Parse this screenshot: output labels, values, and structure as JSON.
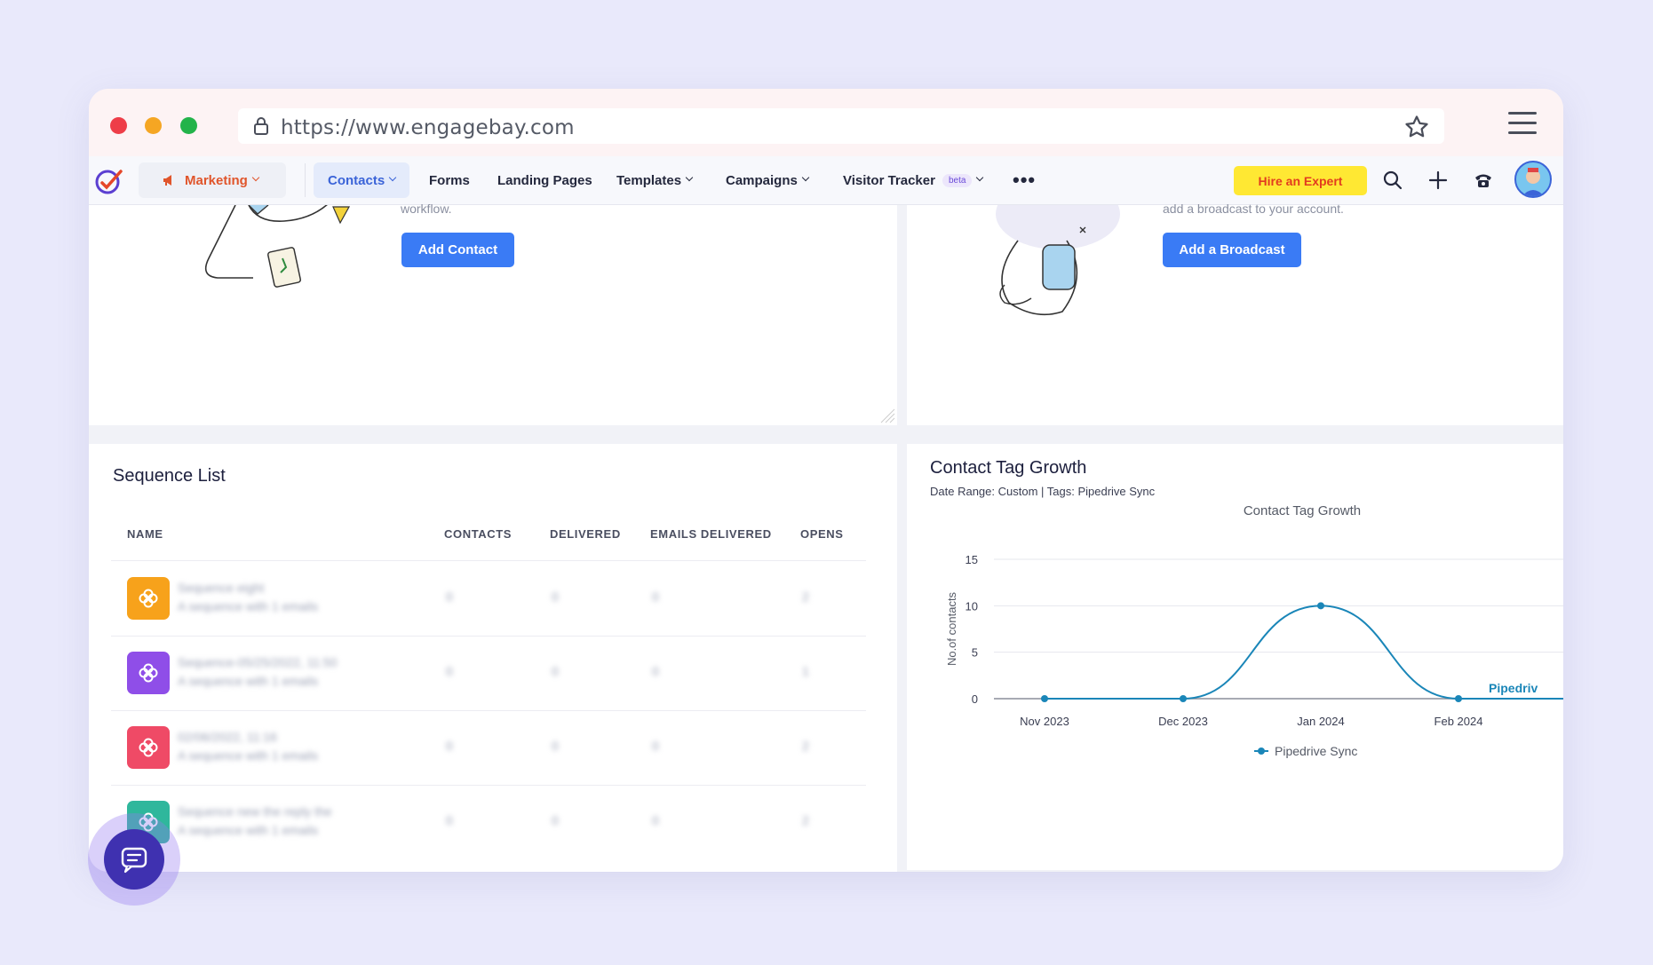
{
  "browser": {
    "url": "https://www.engagebay.com"
  },
  "nav": {
    "module_label": "Marketing",
    "items": [
      "Contacts",
      "Forms",
      "Landing Pages",
      "Templates",
      "Campaigns",
      "Visitor Tracker"
    ],
    "beta_badge": "beta",
    "more_label": "•••",
    "hire_label": "Hire an Expert"
  },
  "top_left_card": {
    "text": "workflow.",
    "button_label": "Add Contact"
  },
  "top_right_card": {
    "text": "add a broadcast to your account.",
    "button_label": "Add a Broadcast"
  },
  "sequence_list": {
    "title": "Sequence List",
    "columns": [
      "NAME",
      "CONTACTS",
      "DELIVERED",
      "EMAILS DELIVERED",
      "OPENS"
    ],
    "rows": [
      {
        "name": "Sequence eight",
        "subtitle": "A sequence with 1 emails",
        "contacts": "0",
        "delivered": "0",
        "emails_delivered": "0",
        "opens": "2",
        "color": "#f7a21b"
      },
      {
        "name": "Sequence-05/25/2022, 11:50",
        "subtitle": "A sequence with 1 emails",
        "contacts": "0",
        "delivered": "0",
        "emails_delivered": "0",
        "opens": "1",
        "color": "#8f4ee8"
      },
      {
        "name": "02/06/2022, 11:16",
        "subtitle": "A sequence with 1 emails",
        "contacts": "0",
        "delivered": "0",
        "emails_delivered": "0",
        "opens": "2",
        "color": "#ef4a66"
      },
      {
        "name": "Sequence new the reply the",
        "subtitle": "A sequence with 1 emails",
        "contacts": "0",
        "delivered": "0",
        "emails_delivered": "0",
        "opens": "2",
        "color": "#2fb79c"
      }
    ]
  },
  "contact_tag_growth": {
    "title": "Contact Tag Growth",
    "subtitle": "Date Range: Custom | Tags: Pipedrive Sync",
    "end_label": "Pipedriv"
  },
  "chart_data": {
    "type": "line",
    "title": "Contact Tag Growth",
    "xlabel": "",
    "ylabel": "No.of contacts",
    "categories": [
      "Nov 2023",
      "Dec 2023",
      "Jan 2024",
      "Feb 2024"
    ],
    "yticks": [
      0,
      5,
      10,
      15
    ],
    "ylim": [
      0,
      15
    ],
    "series": [
      {
        "name": "Pipedrive Sync",
        "values": [
          0,
          0,
          10,
          0
        ],
        "color": "#1a86b8"
      }
    ],
    "legend": "bottom",
    "grid": true
  }
}
